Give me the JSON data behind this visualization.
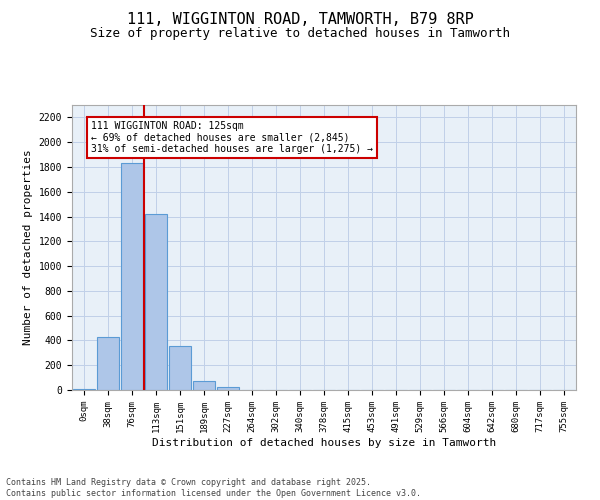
{
  "title": "111, WIGGINTON ROAD, TAMWORTH, B79 8RP",
  "subtitle": "Size of property relative to detached houses in Tamworth",
  "xlabel": "Distribution of detached houses by size in Tamworth",
  "ylabel": "Number of detached properties",
  "footnote1": "Contains HM Land Registry data © Crown copyright and database right 2025.",
  "footnote2": "Contains public sector information licensed under the Open Government Licence v3.0.",
  "categories": [
    "0sqm",
    "38sqm",
    "76sqm",
    "113sqm",
    "151sqm",
    "189sqm",
    "227sqm",
    "264sqm",
    "302sqm",
    "340sqm",
    "378sqm",
    "415sqm",
    "453sqm",
    "491sqm",
    "529sqm",
    "566sqm",
    "604sqm",
    "642sqm",
    "680sqm",
    "717sqm",
    "755sqm"
  ],
  "values": [
    5,
    430,
    1830,
    1420,
    355,
    75,
    22,
    3,
    0,
    0,
    0,
    0,
    0,
    0,
    0,
    0,
    0,
    0,
    0,
    0,
    0
  ],
  "bar_color": "#aec6e8",
  "bar_edge_color": "#5b9bd5",
  "vline_color": "#cc0000",
  "annotation_text": "111 WIGGINTON ROAD: 125sqm\n← 69% of detached houses are smaller (2,845)\n31% of semi-detached houses are larger (1,275) →",
  "annotation_box_color": "#cc0000",
  "annotation_text_color": "#000000",
  "ylim": [
    0,
    2300
  ],
  "yticks": [
    0,
    200,
    400,
    600,
    800,
    1000,
    1200,
    1400,
    1600,
    1800,
    2000,
    2200
  ],
  "grid_color": "#c0d0e8",
  "bg_color": "#e8f0f8",
  "title_fontsize": 11,
  "subtitle_fontsize": 9,
  "tick_fontsize": 6.5,
  "label_fontsize": 8,
  "annotation_fontsize": 7,
  "footnote_fontsize": 6
}
